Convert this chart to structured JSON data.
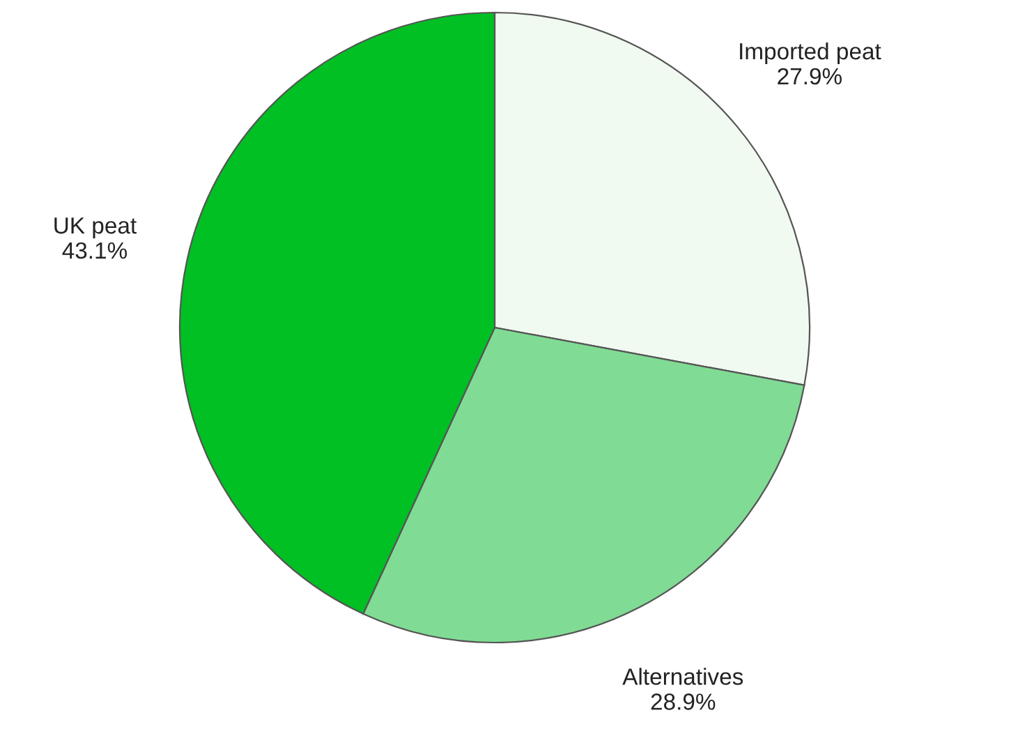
{
  "chart_data": {
    "type": "pie",
    "categories": [
      "Imported peat",
      "Alternatives",
      "UK peat"
    ],
    "values": [
      27.9,
      28.9,
      43.1
    ],
    "value_labels": [
      "27.9%",
      "28.9%",
      "43.1%"
    ],
    "colors": [
      "#f0faf0",
      "#80dc94",
      "#00c024"
    ],
    "legend": false
  }
}
